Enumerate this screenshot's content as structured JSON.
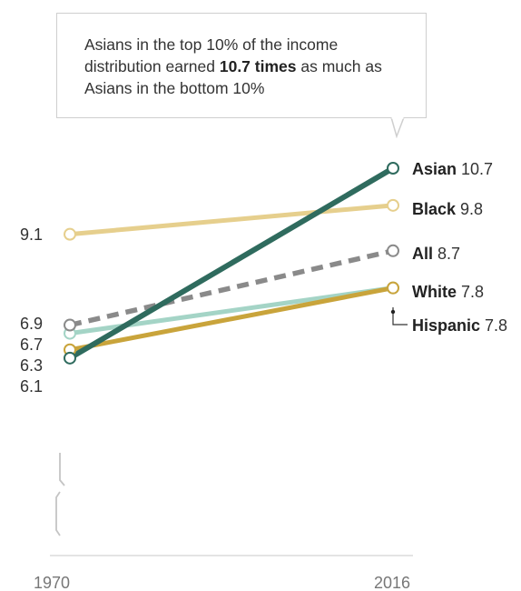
{
  "callout": {
    "text_before": "Asians in the top 10% of the income distribution earned ",
    "text_bold": "10.7 times",
    "text_after": " as much as Asians in the bottom 10%"
  },
  "chart_data": {
    "type": "line",
    "x": [
      "1970",
      "2016"
    ],
    "ylim": [
      6.1,
      10.7
    ],
    "axis_break": true,
    "grid": false,
    "legend": "direct labels at line ends",
    "series": [
      {
        "name": "Black",
        "values": [
          9.1,
          9.8
        ],
        "color": "#e6cf8d",
        "style": "solid",
        "start_label": "9.1",
        "end_label": "9.8"
      },
      {
        "name": "White",
        "values": [
          6.7,
          7.8
        ],
        "color": "#a4d4c6",
        "style": "solid",
        "start_label": "6.7",
        "end_label": "7.8"
      },
      {
        "name": "Hispanic",
        "values": [
          6.3,
          7.8
        ],
        "color": "#c9a43b",
        "style": "solid",
        "start_label": "6.3",
        "end_label": "7.8"
      },
      {
        "name": "All",
        "values": [
          6.9,
          8.7
        ],
        "color": "#8a8a8a",
        "style": "dashed",
        "start_label": "6.9",
        "end_label": "8.7"
      },
      {
        "name": "Asian",
        "values": [
          6.1,
          10.7
        ],
        "color": "#2f6b5e",
        "style": "solid",
        "start_label": "6.1",
        "end_label": "10.7"
      }
    ]
  }
}
